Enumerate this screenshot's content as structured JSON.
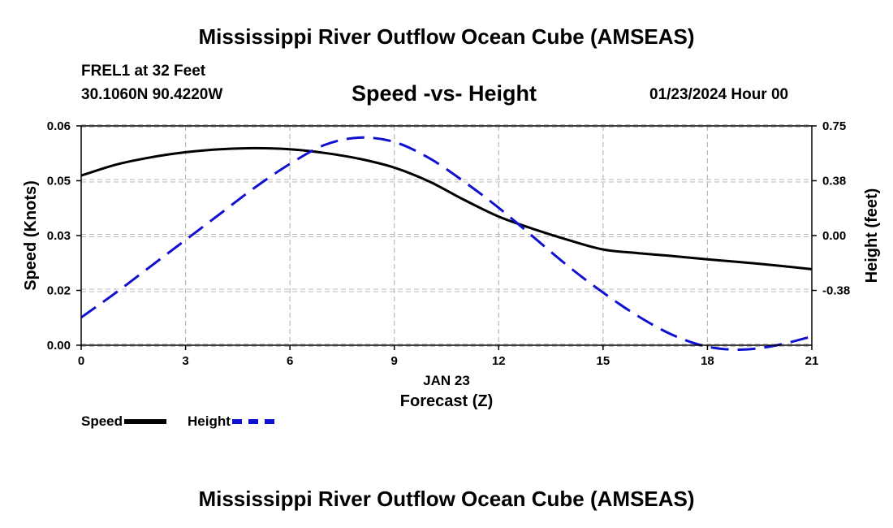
{
  "main_title": "Mississippi River Outflow Ocean Cube (AMSEAS)",
  "bottom_title": "Mississippi River Outflow Ocean Cube (AMSEAS)",
  "station": "FREL1 at 32 Feet",
  "coords": "30.1060N  90.4220W",
  "subtitle": "Speed -vs- Height",
  "datetime": "01/23/2024 Hour 00",
  "legend": {
    "speed": "Speed",
    "height": "Height"
  },
  "colors": {
    "speed": "#000000",
    "height": "#1010d0",
    "grid": "#b8b8b8"
  },
  "chart_data": {
    "type": "line",
    "xlabel": "Forecast (Z)",
    "xdate": "JAN 23",
    "xlim": [
      0,
      21
    ],
    "xticks": [
      0,
      3,
      6,
      9,
      12,
      15,
      18,
      21
    ],
    "xtick_labels": [
      "0",
      "3",
      "6",
      "9",
      "12",
      "15",
      "18",
      "21"
    ],
    "ylabel": "Speed (Knots)",
    "ylim": [
      0,
      0.06
    ],
    "yticks": [
      0,
      0.015,
      0.03,
      0.045,
      0.06
    ],
    "ytick_labels": [
      "0.00",
      "0.02",
      "0.03",
      "0.05",
      "0.06"
    ],
    "y2label": "Height (feet)",
    "y2lim": [
      -0.75,
      0.75
    ],
    "y2ticks": [
      -0.375,
      0,
      0.375,
      0.75
    ],
    "y2tick_labels": [
      "-0.38",
      "0.00",
      "0.38",
      "0.75"
    ],
    "grid": true,
    "x": [
      0,
      1,
      2,
      3,
      4,
      5,
      6,
      7,
      8,
      9,
      10,
      11,
      12,
      13,
      14,
      15,
      16,
      17,
      18,
      19,
      20,
      21
    ],
    "series": [
      {
        "name": "Speed",
        "axis": "left",
        "style": "solid",
        "values": [
          0.0464,
          0.0494,
          0.0514,
          0.0528,
          0.0536,
          0.0539,
          0.0536,
          0.0526,
          0.051,
          0.0486,
          0.0448,
          0.0398,
          0.0352,
          0.0318,
          0.0288,
          0.0262,
          0.0252,
          0.0244,
          0.0235,
          0.0227,
          0.0218,
          0.0208
        ]
      },
      {
        "name": "Height",
        "axis": "right",
        "style": "dashed",
        "values": [
          -0.56,
          -0.39,
          -0.21,
          -0.03,
          0.15,
          0.33,
          0.49,
          0.62,
          0.67,
          0.64,
          0.53,
          0.37,
          0.19,
          -0.01,
          -0.21,
          -0.39,
          -0.55,
          -0.68,
          -0.76,
          -0.78,
          -0.75,
          -0.69
        ]
      }
    ]
  }
}
